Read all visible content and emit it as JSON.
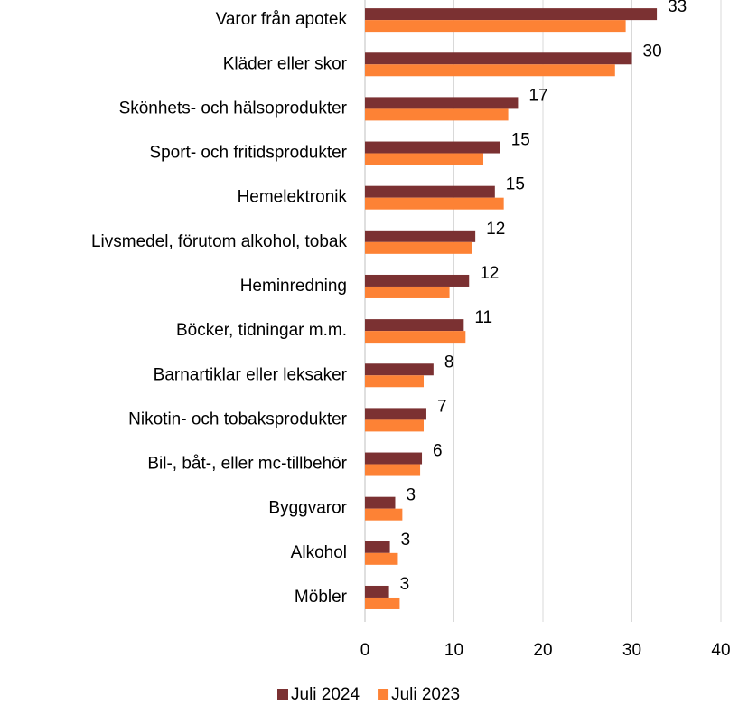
{
  "chart_data": {
    "type": "barh",
    "categories": [
      "Varor från apotek",
      "Kläder eller skor",
      "Skönhets- och hälsoprodukter",
      "Sport- och fritidsprodukter",
      "Hemelektronik",
      "Livsmedel, förutom alkohol, tobak",
      "Heminredning",
      "Böcker, tidningar m.m.",
      "Barnartiklar eller leksaker",
      "Nikotin- och tobaksprodukter",
      "Bil-, båt-, eller mc-tillbehör",
      "Byggvaror",
      "Alkohol",
      "Möbler"
    ],
    "series": [
      {
        "name": "Juli 2024",
        "color": "#7b3132",
        "values": [
          32.8,
          30.0,
          17.2,
          15.2,
          14.6,
          12.4,
          11.7,
          11.1,
          7.7,
          6.9,
          6.4,
          3.4,
          2.8,
          2.7
        ],
        "value_labels": [
          "33",
          "30",
          "17",
          "15",
          "15",
          "12",
          "12",
          "11",
          "8",
          "7",
          "6",
          "3",
          "3",
          "3"
        ]
      },
      {
        "name": "Juli 2023",
        "color": "#fd8235",
        "values": [
          29.3,
          28.1,
          16.1,
          13.3,
          15.6,
          12.0,
          9.5,
          11.3,
          6.6,
          6.6,
          6.2,
          4.2,
          3.7,
          3.9
        ]
      }
    ],
    "xlim": [
      0,
      40
    ],
    "xticks": [
      0,
      10,
      20,
      30,
      40
    ],
    "grid": true,
    "legend": "bottom"
  }
}
